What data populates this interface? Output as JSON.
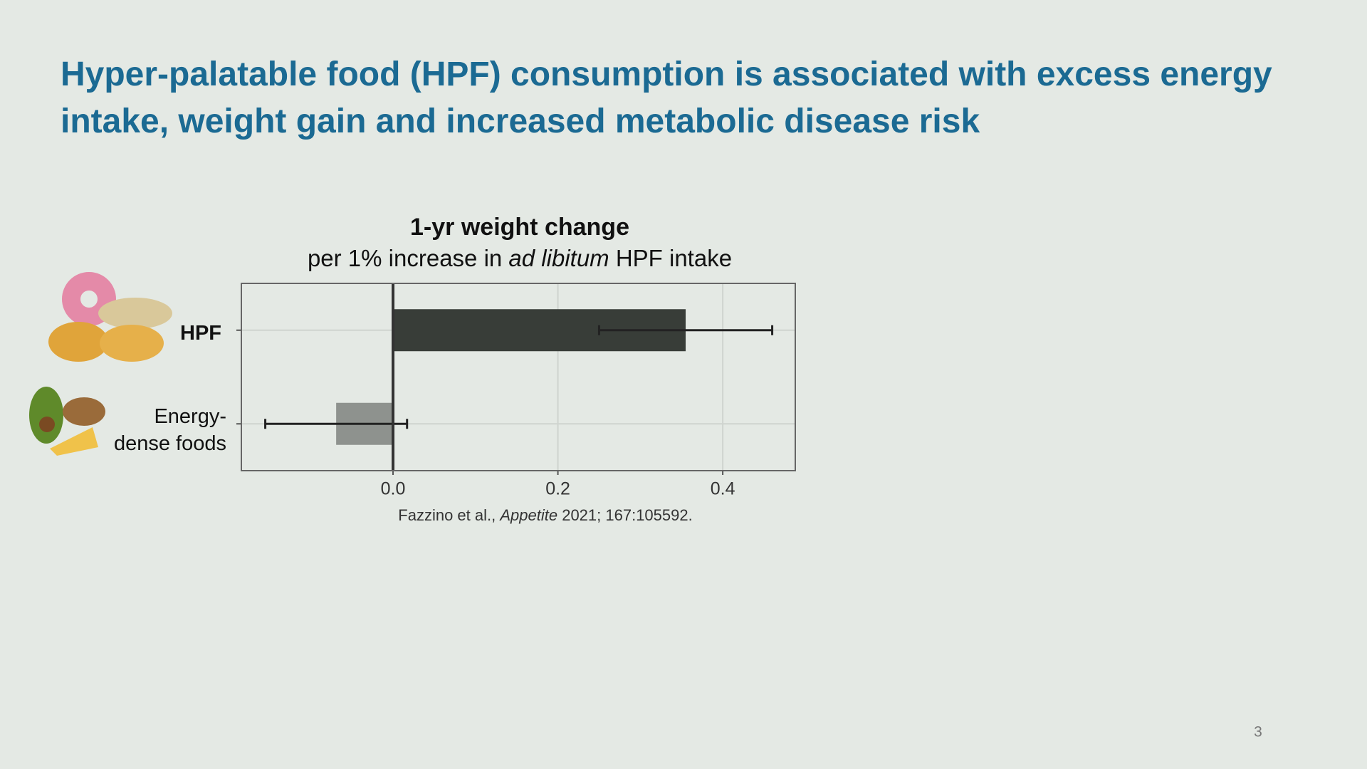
{
  "slide": {
    "title": "Hyper-palatable food (HPF) consumption is associated with excess energy intake, weight gain and increased metabolic disease risk",
    "citation": [
      "Fazzino et al., ",
      "Appetite",
      " 2021; 167:105592."
    ],
    "page_number": "3"
  },
  "chart_data": {
    "type": "hbar",
    "title": "1-yr weight change",
    "subtitle": [
      "per 1% increase in ",
      "ad libitum",
      " HPF intake"
    ],
    "categories": [
      "HPF",
      "Energy-dense foods"
    ],
    "values": [
      0.355,
      -0.069
    ],
    "errors": [
      0.105,
      0.086
    ],
    "colors": [
      "#383d38",
      "#8e928e"
    ],
    "xlim": [
      -0.184,
      0.488
    ],
    "xticks": [
      {
        "value": 0,
        "label": "0.0"
      },
      0.2,
      0.4
    ],
    "grid": true
  }
}
